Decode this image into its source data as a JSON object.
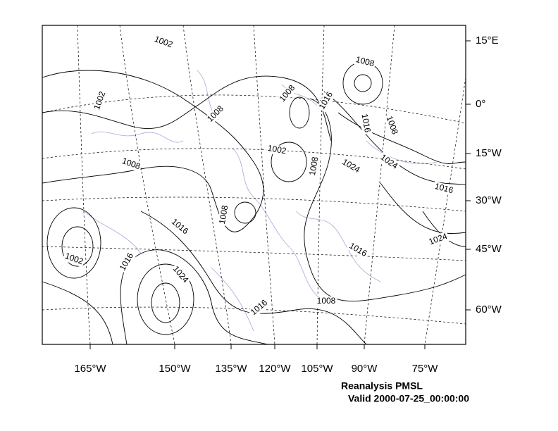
{
  "map": {
    "title": "Reanalysis PMSL",
    "valid": "Valid 2000-07-25_00:00:00",
    "lat_labels": [
      "15°E",
      "0°",
      "15°W",
      "30°W",
      "45°W",
      "60°W"
    ],
    "lon_labels": [
      "165°W",
      "150°W",
      "135°W",
      "120°W",
      "105°W",
      "90°W",
      "75°W"
    ],
    "contour_labels": [
      "1002",
      "1008",
      "1002",
      "1008",
      "1016",
      "1008",
      "1016",
      "1008",
      "1008",
      "1002",
      "1024",
      "1024",
      "1008",
      "1016",
      "1008",
      "1016",
      "1024",
      "1016",
      "1002",
      "1016",
      "1024",
      "1016",
      "1008"
    ]
  }
}
